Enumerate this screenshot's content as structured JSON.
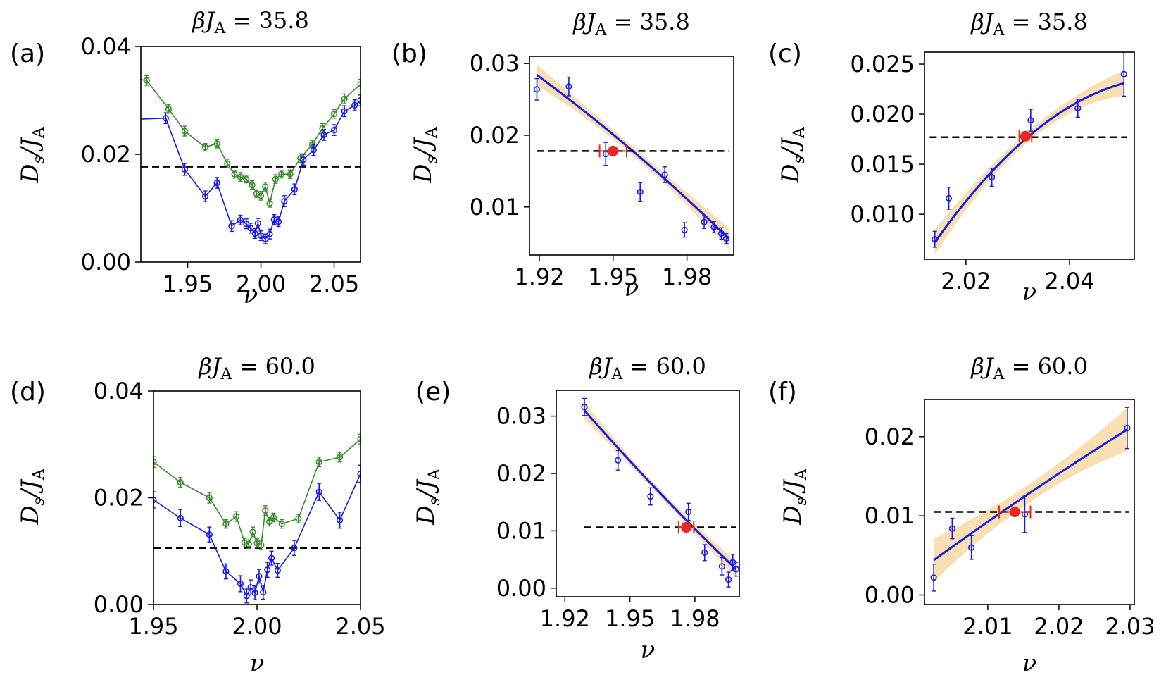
{
  "chart_data": [
    {
      "type": "scatter",
      "panel_label": "(a)",
      "title": "βJA = 35.8",
      "title_parts": {
        "prefix": "βJ",
        "sub": "A",
        "suffix": " = 35.8"
      },
      "xlabel": "ν",
      "ylabel_parts": {
        "main": "D",
        "sub": "s",
        "mid": "/J",
        "sub2": "A"
      },
      "xlim": [
        1.918,
        2.068
      ],
      "ylim": [
        0.0,
        0.04
      ],
      "xticks": [
        1.95,
        2.0,
        2.05
      ],
      "xtick_labels": [
        "1.95",
        "2.00",
        "2.05"
      ],
      "yticks": [
        0.0,
        0.02,
        0.04
      ],
      "ytick_labels": [
        "0.00",
        "0.02",
        "0.04"
      ],
      "hline": 0.0177,
      "series": [
        {
          "name": "green",
          "color": "#3a8a2e",
          "connected": true,
          "x": [
            1.915,
            1.922,
            1.937,
            1.948,
            1.962,
            1.97,
            1.977,
            1.982,
            1.986,
            1.99,
            1.994,
            1.997,
            2.0,
            2.003,
            2.006,
            2.01,
            2.014,
            2.02,
            2.027,
            2.035,
            2.042,
            2.05,
            2.057,
            2.068
          ],
          "y": [
            0.034,
            0.0337,
            0.0284,
            0.0243,
            0.0213,
            0.022,
            0.0183,
            0.0163,
            0.0158,
            0.0154,
            0.0143,
            0.0127,
            0.0123,
            0.014,
            0.0109,
            0.0154,
            0.0163,
            0.0163,
            0.0193,
            0.0218,
            0.0248,
            0.0275,
            0.0303,
            0.033
          ],
          "err": [
            0.0008,
            0.0009,
            0.0008,
            0.0009,
            0.0007,
            0.0008,
            0.0008,
            0.0007,
            0.0008,
            0.0007,
            0.0008,
            0.0007,
            0.0008,
            0.0008,
            0.0007,
            0.0008,
            0.0007,
            0.0008,
            0.0008,
            0.0008,
            0.0009,
            0.0008,
            0.0009,
            0.0009
          ]
        },
        {
          "name": "blue",
          "color": "#1a1ae6",
          "connected": true,
          "x": [
            1.915,
            1.935,
            1.948,
            1.962,
            1.97,
            1.98,
            1.986,
            1.99,
            1.993,
            1.996,
            1.998,
            2.0,
            2.003,
            2.006,
            2.009,
            2.012,
            2.016,
            2.023,
            2.029,
            2.036,
            2.043,
            2.05,
            2.057,
            2.064,
            2.068
          ],
          "y": [
            0.0265,
            0.0267,
            0.0172,
            0.0122,
            0.0147,
            0.0067,
            0.0078,
            0.0071,
            0.0063,
            0.0053,
            0.0072,
            0.0049,
            0.0043,
            0.0052,
            0.0079,
            0.0075,
            0.0113,
            0.0135,
            0.019,
            0.0208,
            0.0236,
            0.0245,
            0.028,
            0.0291,
            0.03
          ],
          "err": [
            0.001,
            0.001,
            0.0011,
            0.001,
            0.001,
            0.001,
            0.0009,
            0.0009,
            0.0009,
            0.0009,
            0.0009,
            0.0009,
            0.0009,
            0.0009,
            0.0009,
            0.0009,
            0.001,
            0.001,
            0.001,
            0.001,
            0.001,
            0.001,
            0.001,
            0.001,
            0.001
          ]
        }
      ]
    },
    {
      "type": "scatter",
      "panel_label": "(b)",
      "title": "βJA = 35.8",
      "title_parts": {
        "prefix": "βJ",
        "sub": "A",
        "suffix": " = 35.8"
      },
      "xlabel": "ν",
      "ylabel_parts": {
        "main": "D",
        "sub": "s",
        "mid": "/J",
        "sub2": "A"
      },
      "xlim": [
        1.916,
        1.999
      ],
      "ylim": [
        0.0033,
        0.031
      ],
      "xticks": [
        1.92,
        1.95,
        1.98
      ],
      "xtick_labels": [
        "1.92",
        "1.95",
        "1.98"
      ],
      "yticks": [
        0.01,
        0.02,
        0.03
      ],
      "ytick_labels": [
        "0.01",
        "0.02",
        "0.03"
      ],
      "hline": 0.0178,
      "hline_x": [
        1.919,
        1.997
      ],
      "points": {
        "color": "#1a1ae6",
        "x": [
          1.919,
          1.932,
          1.947,
          1.961,
          1.971,
          1.979,
          1.987,
          1.991,
          1.994,
          1.996
        ],
        "y": [
          0.0264,
          0.0268,
          0.0174,
          0.0121,
          0.0145,
          0.0068,
          0.0079,
          0.0072,
          0.0063,
          0.0056
        ],
        "err": [
          0.0015,
          0.0013,
          0.0016,
          0.0013,
          0.0011,
          0.001,
          0.0009,
          0.0008,
          0.0008,
          0.0007
        ]
      },
      "fit": {
        "color": "#1a1ae6",
        "band_color": "#f6d59a",
        "x": [
          1.919,
          1.997
        ],
        "y": [
          0.0284,
          0.0056
        ],
        "curve": 0.0008,
        "band": 0.0007
      },
      "crossing": {
        "x": 1.95,
        "y": 0.0178,
        "xerr": 0.0055,
        "color": "#e8281e"
      }
    },
    {
      "type": "scatter",
      "panel_label": "(c)",
      "title": "βJA = 35.8",
      "title_parts": {
        "prefix": "βJ",
        "sub": "A",
        "suffix": " = 35.8"
      },
      "xlabel": "ν",
      "ylabel_parts": {
        "main": "D",
        "sub": "s",
        "mid": "/J",
        "sub2": "A"
      },
      "xlim": [
        2.012,
        2.0525
      ],
      "ylim": [
        0.0055,
        0.0262
      ],
      "xticks": [
        2.02,
        2.04
      ],
      "xtick_labels": [
        "2.02",
        "2.04"
      ],
      "yticks": [
        0.01,
        0.015,
        0.02,
        0.025
      ],
      "ytick_labels": [
        "0.010",
        "0.015",
        "0.020",
        "0.025"
      ],
      "hline": 0.0177,
      "hline_x": [
        2.013,
        2.051
      ],
      "points": {
        "color": "#1a1ae6",
        "x": [
          2.014,
          2.0167,
          2.025,
          2.0325,
          2.0416,
          2.0505
        ],
        "y": [
          0.0075,
          0.0116,
          0.0137,
          0.0194,
          0.0206,
          0.024
        ],
        "err": [
          0.0008,
          0.0011,
          0.0009,
          0.0011,
          0.0009,
          0.0022
        ]
      },
      "fit": {
        "color": "#1a1ae6",
        "band_color": "#f6d59a",
        "x": [
          2.014,
          2.0505
        ],
        "y": [
          0.0072,
          0.0231
        ],
        "curve": 0.0027,
        "band": 0.0006
      },
      "crossing": {
        "x": 2.0315,
        "y": 0.0178,
        "xerr": 0.0012,
        "color": "#e8281e"
      }
    },
    {
      "type": "scatter",
      "panel_label": "(d)",
      "title": "βJA = 60.0",
      "title_parts": {
        "prefix": "βJ",
        "sub": "A",
        "suffix": " = 60.0"
      },
      "xlabel": "ν",
      "ylabel_parts": {
        "main": "D",
        "sub": "s",
        "mid": "/J",
        "sub2": "A"
      },
      "xlim": [
        1.95,
        2.05
      ],
      "ylim": [
        0.0,
        0.04
      ],
      "xticks": [
        1.95,
        2.0,
        2.05
      ],
      "xtick_labels": [
        "1.95",
        "2.00",
        "2.05"
      ],
      "yticks": [
        0.0,
        0.02,
        0.04
      ],
      "ytick_labels": [
        "0.00",
        "0.02",
        "0.04"
      ],
      "hline": 0.0106,
      "series": [
        {
          "name": "green",
          "color": "#3a8a2e",
          "connected": true,
          "x": [
            1.95,
            1.963,
            1.977,
            1.985,
            1.99,
            1.994,
            1.996,
            1.998,
            2.0,
            2.002,
            2.004,
            2.006,
            2.008,
            2.012,
            2.02,
            2.03,
            2.04,
            2.05
          ],
          "y": [
            0.0267,
            0.0229,
            0.02,
            0.0151,
            0.0165,
            0.0116,
            0.0113,
            0.0136,
            0.0115,
            0.0111,
            0.0176,
            0.0155,
            0.0163,
            0.0151,
            0.0161,
            0.0267,
            0.0276,
            0.031
          ],
          "err": [
            0.001,
            0.0009,
            0.001,
            0.0008,
            0.0009,
            0.0008,
            0.0008,
            0.0009,
            0.0008,
            0.0008,
            0.0009,
            0.0008,
            0.0008,
            0.0008,
            0.0008,
            0.0009,
            0.0009,
            0.0009
          ]
        },
        {
          "name": "blue",
          "color": "#1a1ae6",
          "connected": true,
          "x": [
            1.95,
            1.963,
            1.977,
            1.985,
            1.992,
            1.995,
            1.997,
            1.999,
            2.001,
            2.003,
            2.005,
            2.007,
            2.01,
            2.018,
            2.03,
            2.04,
            2.05
          ],
          "y": [
            0.0196,
            0.0162,
            0.0131,
            0.0062,
            0.0039,
            0.0016,
            0.0032,
            0.0022,
            0.0053,
            0.0023,
            0.0065,
            0.0087,
            0.0064,
            0.0106,
            0.0211,
            0.0158,
            0.0245
          ],
          "err": [
            0.0015,
            0.0016,
            0.0014,
            0.0014,
            0.0015,
            0.0013,
            0.0014,
            0.0013,
            0.0013,
            0.0013,
            0.0014,
            0.0013,
            0.0013,
            0.0014,
            0.0016,
            0.0015,
            0.0016
          ]
        }
      ]
    },
    {
      "type": "scatter",
      "panel_label": "(e)",
      "title": "βJA = 60.0",
      "title_parts": {
        "prefix": "βJ",
        "sub": "A",
        "suffix": " = 60.0"
      },
      "xlabel": "ν",
      "ylabel_parts": {
        "main": "D",
        "sub": "s",
        "mid": "/J",
        "sub2": "A"
      },
      "xlim": [
        1.916,
        2.0005
      ],
      "ylim": [
        -0.0015,
        0.0345
      ],
      "xticks": [
        1.92,
        1.95,
        1.98
      ],
      "xtick_labels": [
        "1.92",
        "1.95",
        "1.98"
      ],
      "yticks": [
        0.0,
        0.01,
        0.02,
        0.03
      ],
      "ytick_labels": [
        "0.00",
        "0.01",
        "0.02",
        "0.03"
      ],
      "hline": 0.0106,
      "hline_x": [
        1.929,
        1.999
      ],
      "points": {
        "color": "#1a1ae6",
        "x": [
          1.929,
          1.9445,
          1.9595,
          1.977,
          1.9845,
          1.9925,
          1.9955,
          1.9975,
          1.999
        ],
        "y": [
          0.0316,
          0.0223,
          0.016,
          0.0133,
          0.0062,
          0.0038,
          0.0015,
          0.0045,
          0.0033
        ],
        "err": [
          0.0015,
          0.0017,
          0.0015,
          0.0015,
          0.0014,
          0.0015,
          0.0013,
          0.0014,
          0.0012
        ]
      },
      "fit": {
        "color": "#1a1ae6",
        "band_color": "#f6d59a",
        "x": [
          1.929,
          1.999
        ],
        "y": [
          0.031,
          0.0033
        ],
        "curve": -0.0006,
        "band": 0.0007
      },
      "crossing": {
        "x": 1.976,
        "y": 0.0106,
        "xerr": 0.0035,
        "color": "#e8281e"
      }
    },
    {
      "type": "scatter",
      "panel_label": "(f)",
      "title": "βJA = 60.0",
      "title_parts": {
        "prefix": "βJ",
        "sub": "A",
        "suffix": " = 60.0"
      },
      "xlabel": "ν",
      "ylabel_parts": {
        "main": "D",
        "sub": "s",
        "mid": "/J",
        "sub2": "A"
      },
      "xlim": [
        2.0011,
        2.0306
      ],
      "ylim": [
        -0.0012,
        0.0247
      ],
      "xticks": [
        2.01,
        2.02,
        2.03
      ],
      "xtick_labels": [
        "2.01",
        "2.02",
        "2.03"
      ],
      "yticks": [
        0.0,
        0.01,
        0.02
      ],
      "ytick_labels": [
        "0.00",
        "0.01",
        "0.02"
      ],
      "hline": 0.0105,
      "hline_x": [
        2.0024,
        2.0298
      ],
      "points": {
        "color": "#1a1ae6",
        "x": [
          2.0024,
          2.005,
          2.0077,
          2.0152,
          2.0296
        ],
        "y": [
          0.0022,
          0.0084,
          0.006,
          0.0102,
          0.0211
        ],
        "err": [
          0.0017,
          0.0013,
          0.0015,
          0.0023,
          0.0026
        ]
      },
      "fit": {
        "color": "#1a1ae6",
        "band_color": "#f6d59a",
        "x": [
          2.0024,
          2.0296
        ],
        "y": [
          0.0044,
          0.0209
        ],
        "curve": 0.0003,
        "band": 0.0013
      },
      "crossing": {
        "x": 2.0138,
        "y": 0.0105,
        "xerr": 0.0022,
        "color": "#e8281e"
      }
    }
  ]
}
